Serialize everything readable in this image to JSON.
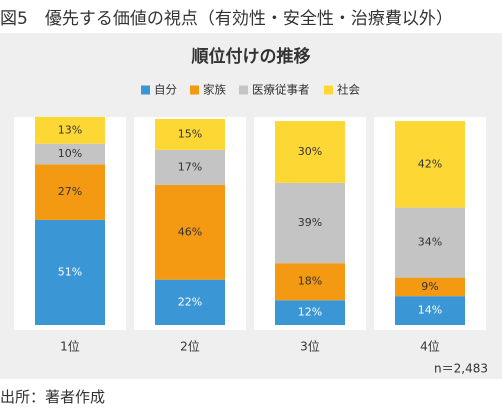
{
  "figure_title": "図5　優先する価値の視点（有効性・安全性・治療費以外）",
  "source": "出所：著者作成",
  "chart_data": {
    "type": "bar",
    "stacked": true,
    "percent": true,
    "title": "順位付けの推移",
    "categories": [
      "1位",
      "2位",
      "3位",
      "4位"
    ],
    "series": [
      {
        "name": "自分",
        "color": "#3a96d4",
        "values": [
          51,
          22,
          12,
          14
        ],
        "labels": [
          "51%",
          "22%",
          "12%",
          "14%"
        ],
        "label_color": "#ffffff"
      },
      {
        "name": "家族",
        "color": "#f39a12",
        "values": [
          27,
          46,
          18,
          9
        ],
        "labels": [
          "27%",
          "46%",
          "18%",
          "9%"
        ],
        "label_color": "#333333"
      },
      {
        "name": "医療従事者",
        "color": "#c4c4c4",
        "values": [
          10,
          17,
          39,
          34
        ],
        "labels": [
          "10%",
          "17%",
          "39%",
          "34%"
        ],
        "label_color": "#333333"
      },
      {
        "name": "社会",
        "color": "#fdd835",
        "values": [
          13,
          15,
          30,
          42
        ],
        "labels": [
          "13%",
          "15%",
          "30%",
          "42%"
        ],
        "label_color": "#333333"
      }
    ],
    "note": "n＝2,483",
    "legend_position": "top-center",
    "ylim": [
      0,
      100
    ],
    "grid": false
  }
}
